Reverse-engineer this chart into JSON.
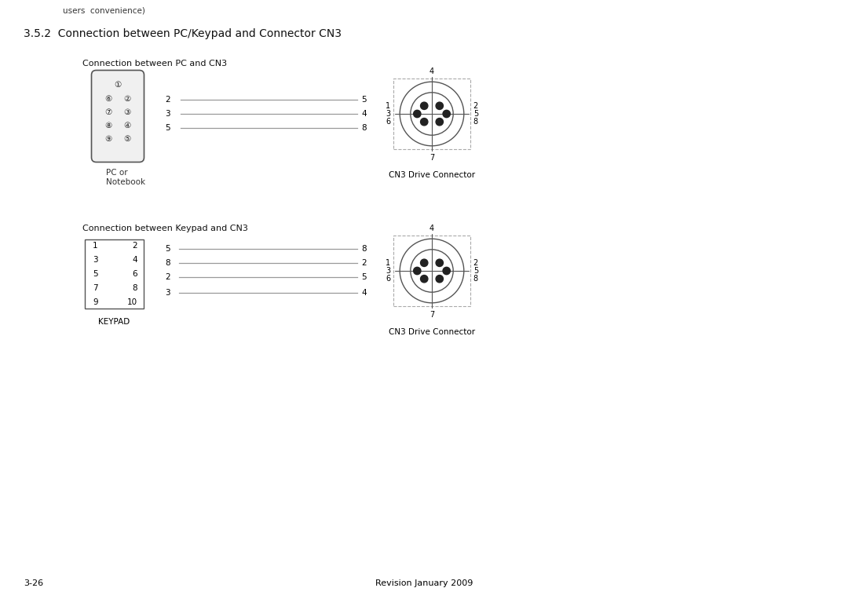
{
  "title": "3.5.2  Connection between PC/Keypad and Connector CN3",
  "header_text": "users  convenience)",
  "section1_title": "Connection between PC and CN3",
  "section2_title": "Connection between Keypad and CN3",
  "pc_label": "PC or\nNotebook",
  "keypad_label": "KEYPAD",
  "cn3_label": "CN3 Drive Connector",
  "footer_left": "3-26",
  "footer_center": "Revision January 2009",
  "bg_color": "#ffffff",
  "line_color": "#999999",
  "text_color": "#000000",
  "dark_color": "#333333"
}
